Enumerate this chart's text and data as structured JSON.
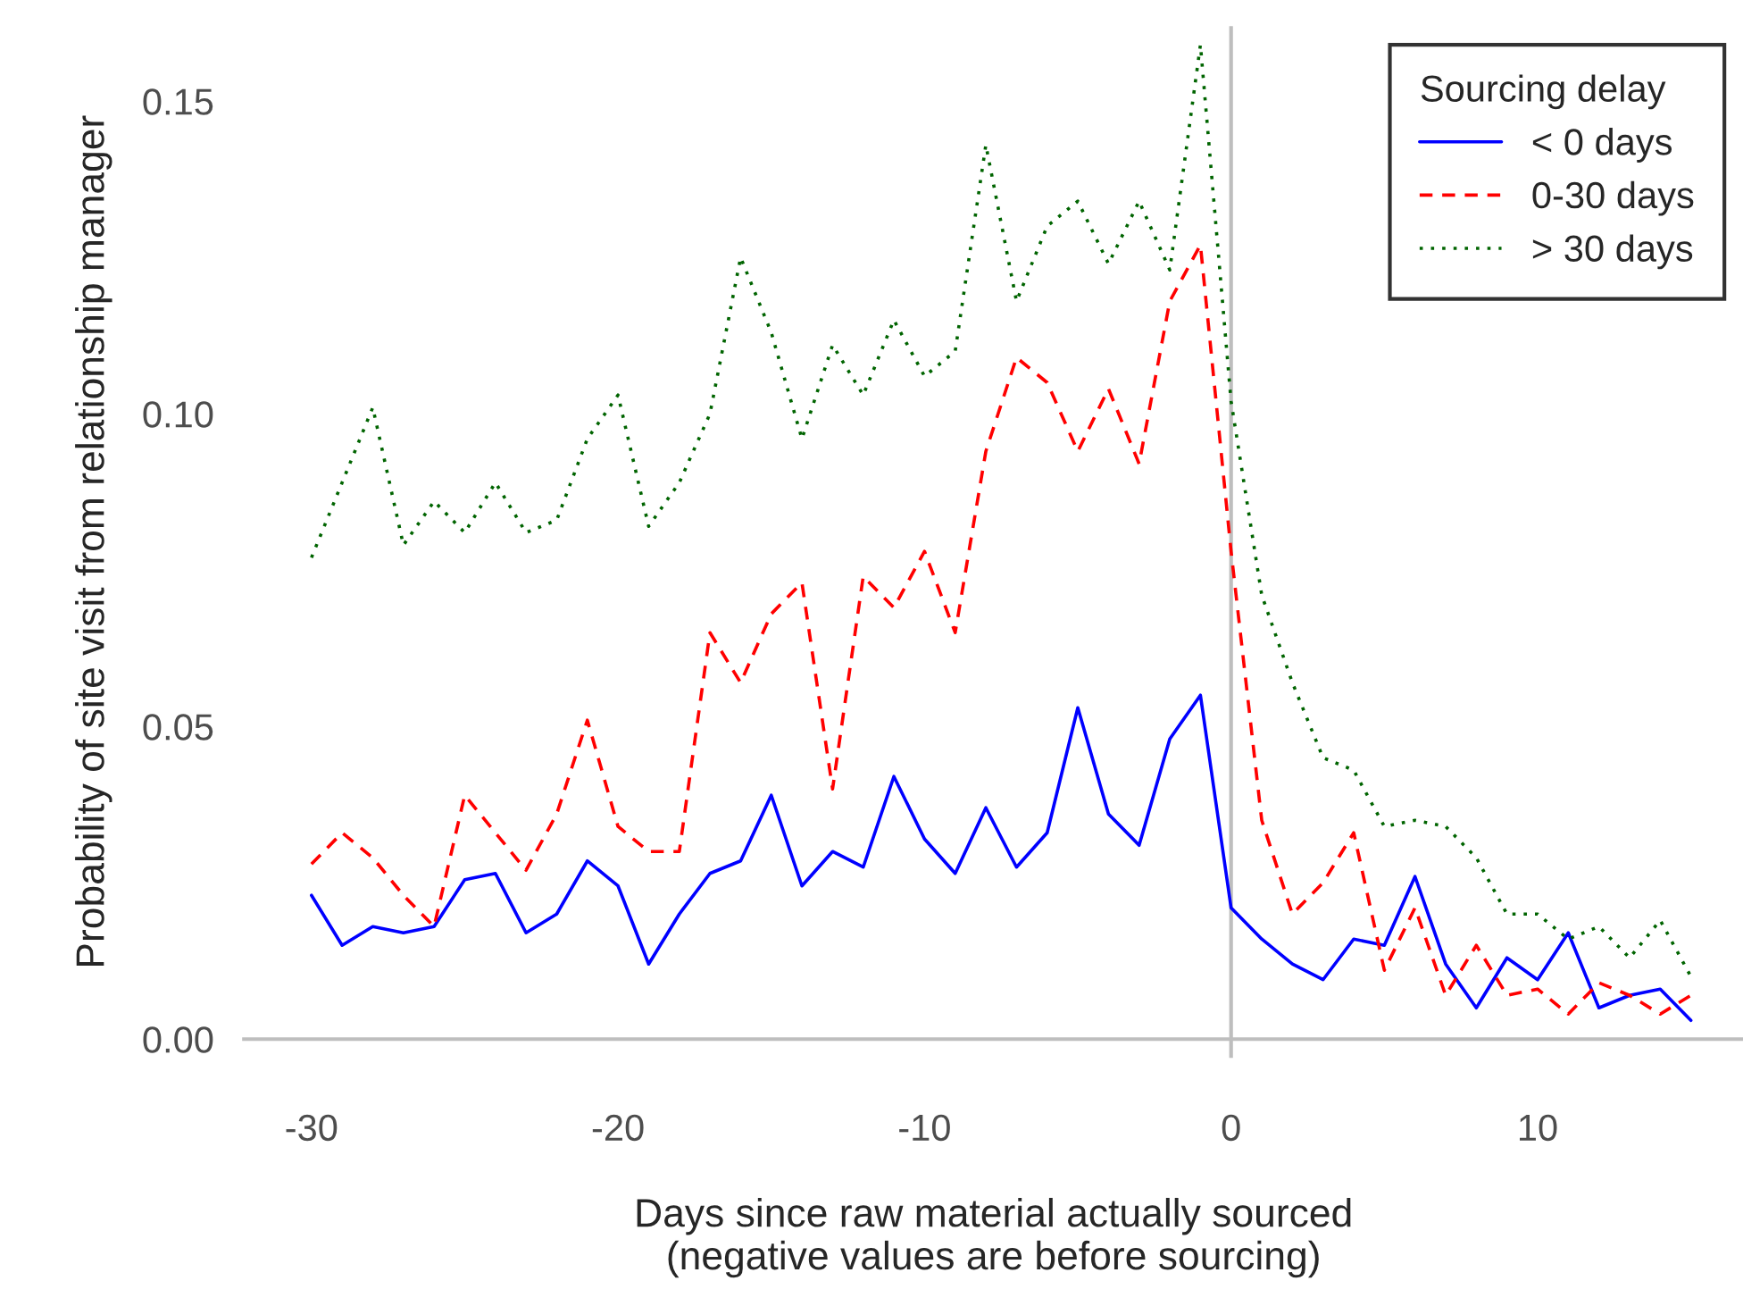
{
  "chart_data": {
    "type": "line",
    "xlabel": "Days since raw material actually sourced\n(negative values are before sourcing)",
    "ylabel": "Probability of site visit from relationship manager",
    "legend_title": "Sourcing delay",
    "x": [
      -30,
      -29,
      -28,
      -27,
      -26,
      -25,
      -24,
      -23,
      -22,
      -21,
      -20,
      -19,
      -18,
      -17,
      -16,
      -15,
      -14,
      -13,
      -12,
      -11,
      -10,
      -9,
      -8,
      -7,
      -6,
      -5,
      -4,
      -3,
      -2,
      -1,
      0,
      1,
      2,
      3,
      4,
      5,
      6,
      7,
      8,
      9,
      10,
      11,
      12,
      13,
      14,
      15
    ],
    "series": [
      {
        "name": "< 0 days",
        "color": "#0000ff",
        "line_style": "solid",
        "values": [
          0.023,
          0.015,
          0.018,
          0.017,
          0.018,
          0.0255,
          0.0265,
          0.017,
          0.02,
          0.0285,
          0.0245,
          0.012,
          0.02,
          0.0265,
          0.0285,
          0.039,
          0.0245,
          0.03,
          0.0275,
          0.042,
          0.032,
          0.0265,
          0.037,
          0.0275,
          0.033,
          0.053,
          0.036,
          0.031,
          0.048,
          0.055,
          0.021,
          0.016,
          0.012,
          0.0095,
          0.016,
          0.015,
          0.026,
          0.012,
          0.005,
          0.013,
          0.0095,
          0.017,
          0.005,
          0.007,
          0.008,
          0.003
        ]
      },
      {
        "name": "0-30 days",
        "color": "#ff0000",
        "line_style": "dashed",
        "values": [
          0.028,
          0.033,
          0.029,
          0.023,
          0.018,
          0.039,
          0.033,
          0.027,
          0.036,
          0.051,
          0.034,
          0.03,
          0.03,
          0.065,
          0.057,
          0.068,
          0.073,
          0.04,
          0.074,
          0.069,
          0.078,
          0.065,
          0.094,
          0.109,
          0.105,
          0.094,
          0.104,
          0.092,
          0.118,
          0.127,
          0.078,
          0.035,
          0.02,
          0.025,
          0.033,
          0.011,
          0.021,
          0.007,
          0.015,
          0.007,
          0.008,
          0.004,
          0.009,
          0.007,
          0.004,
          0.007
        ]
      },
      {
        "name": "> 30 days",
        "color": "#006400",
        "line_style": "dotted",
        "values": [
          0.077,
          0.089,
          0.101,
          0.079,
          0.086,
          0.081,
          0.089,
          0.081,
          0.083,
          0.096,
          0.103,
          0.082,
          0.089,
          0.1,
          0.125,
          0.113,
          0.096,
          0.111,
          0.103,
          0.115,
          0.106,
          0.11,
          0.143,
          0.118,
          0.13,
          0.134,
          0.124,
          0.134,
          0.123,
          0.159,
          0.102,
          0.071,
          0.057,
          0.045,
          0.043,
          0.034,
          0.035,
          0.034,
          0.029,
          0.02,
          0.02,
          0.016,
          0.018,
          0.013,
          0.019,
          0.01
        ]
      }
    ],
    "xlim": [
      -32.2,
      16.7
    ],
    "xticks": [
      -30,
      -20,
      -10,
      0,
      10
    ],
    "ylim": [
      -0.003,
      0.162
    ],
    "yticks": [
      {
        "value": 0,
        "label": "0.00"
      },
      {
        "value": 0.05,
        "label": "0.05"
      },
      {
        "value": 0.1,
        "label": "0.10"
      },
      {
        "value": 0.15,
        "label": "0.15"
      }
    ],
    "ref_lines": [
      {
        "axis": "x",
        "value": 0,
        "color": "#bebebe"
      }
    ],
    "grid": false,
    "legend": "top right",
    "marker": "none"
  }
}
